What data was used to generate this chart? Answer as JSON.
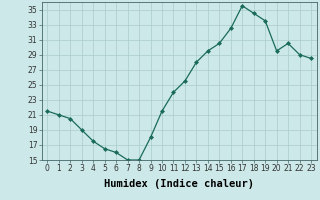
{
  "x": [
    0,
    1,
    2,
    3,
    4,
    5,
    6,
    7,
    8,
    9,
    10,
    11,
    12,
    13,
    14,
    15,
    16,
    17,
    18,
    19,
    20,
    21,
    22,
    23
  ],
  "y": [
    21.5,
    21.0,
    20.5,
    19.0,
    17.5,
    16.5,
    16.0,
    15.0,
    15.0,
    18.0,
    21.5,
    24.0,
    25.5,
    28.0,
    29.5,
    30.5,
    32.5,
    35.5,
    34.5,
    33.5,
    29.5,
    30.5,
    29.0,
    28.5
  ],
  "line_color": "#1a6b5a",
  "marker": "D",
  "marker_size": 2.0,
  "bg_color": "#cce8e8",
  "grid_color": "#aacccc",
  "xlabel": "Humidex (Indice chaleur)",
  "ylim": [
    15,
    36
  ],
  "xlim": [
    -0.5,
    23.5
  ],
  "yticks": [
    15,
    17,
    19,
    21,
    23,
    25,
    27,
    29,
    31,
    33,
    35
  ],
  "xticks": [
    0,
    1,
    2,
    3,
    4,
    5,
    6,
    7,
    8,
    9,
    10,
    11,
    12,
    13,
    14,
    15,
    16,
    17,
    18,
    19,
    20,
    21,
    22,
    23
  ],
  "tick_fontsize": 5.5,
  "xlabel_fontsize": 7.5
}
